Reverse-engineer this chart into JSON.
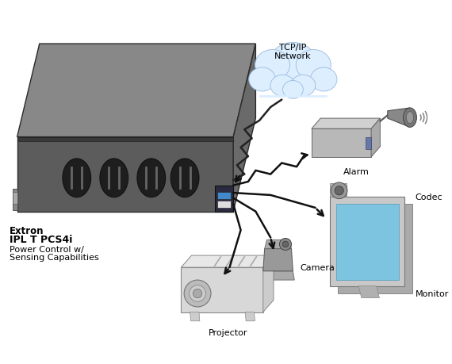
{
  "bg_color": "#ffffff",
  "device_label_line1": "Extron",
  "device_label_line2": "IPL T PCS4i",
  "device_label_line3": "Power Control w/",
  "device_label_line4": "Sensing Capabilities",
  "network_label": "TCP/IP\nNetwork",
  "alarm_label": "Alarm",
  "codec_label": "Codec",
  "camera_label": "Camera",
  "monitor_label": "Monitor",
  "projector_label": "Projector",
  "arrow_color": "#111111"
}
